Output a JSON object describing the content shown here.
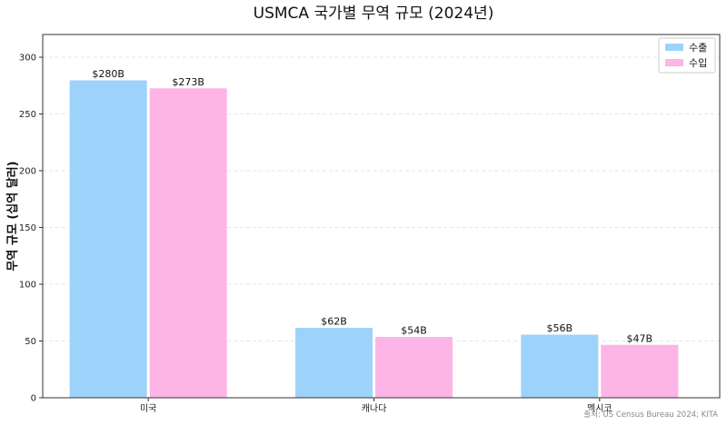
{
  "chart_data": {
    "type": "bar",
    "title": "USMCA 국가별 무역 규모 (2024년)",
    "xlabel": "",
    "ylabel": "무역 규모 (십억 달러)",
    "categories": [
      "미국",
      "캐나다",
      "멕시코"
    ],
    "series": [
      {
        "name": "수출",
        "values": [
          280,
          62,
          56
        ],
        "labels": [
          "$280B",
          "$62B",
          "$56B"
        ],
        "color": "#9dd3fb"
      },
      {
        "name": "수입",
        "values": [
          273,
          54,
          47
        ],
        "labels": [
          "$273B",
          "$54B",
          "$47B"
        ],
        "color": "#fdb4e6"
      }
    ],
    "ylim": [
      0,
      320
    ],
    "yticks": [
      0,
      50,
      100,
      150,
      200,
      250,
      300
    ],
    "grid": true,
    "legend": "top-right",
    "source": "출처: US Census Bureau 2024; KITA"
  }
}
